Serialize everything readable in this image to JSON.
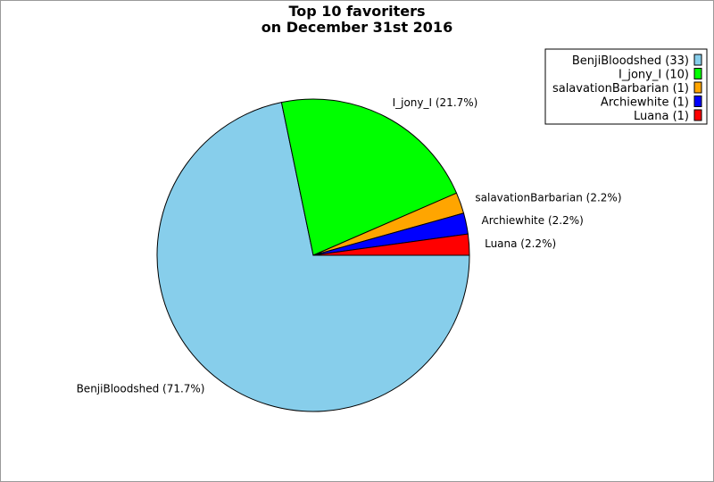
{
  "chart_data": {
    "type": "pie",
    "title": "Top 10 favoriters",
    "subtitle": "on December 31st 2016",
    "start_angle_deg": 0,
    "direction": "clockwise",
    "legend_position": "top-right",
    "slices": [
      {
        "name": "BenjiBloodshed",
        "value": 33,
        "percent_label": "BenjiBloodshed (71.7%)",
        "legend_label": "BenjiBloodshed (33)",
        "color": "#87ceeb"
      },
      {
        "name": "I_jony_I",
        "value": 10,
        "percent_label": "I_jony_I (21.7%)",
        "legend_label": "I_jony_I (10)",
        "color": "#00ff00"
      },
      {
        "name": "salavationBarbarian",
        "value": 1,
        "percent_label": "salavationBarbarian (2.2%)",
        "legend_label": "salavationBarbarian (1)",
        "color": "#ffa500"
      },
      {
        "name": "Archiewhite",
        "value": 1,
        "percent_label": "Archiewhite (2.2%)",
        "legend_label": "Archiewhite (1)",
        "color": "#0000ff"
      },
      {
        "name": "Luana",
        "value": 1,
        "percent_label": "Luana (2.2%)",
        "legend_label": "Luana (1)",
        "color": "#ff0000"
      }
    ]
  }
}
